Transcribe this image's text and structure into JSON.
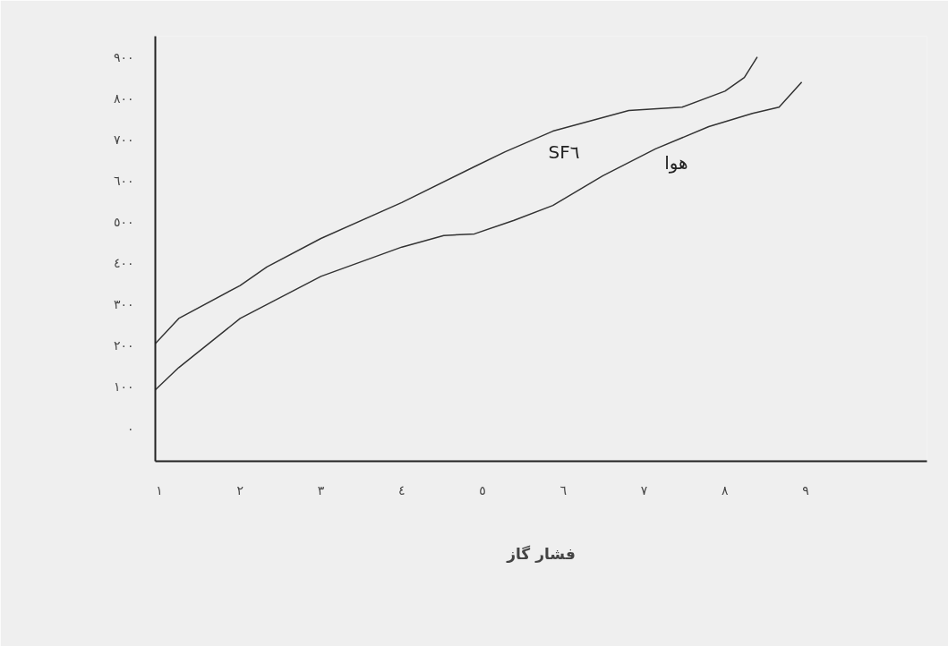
{
  "chart_data": {
    "type": "line",
    "xlabel": "فشار گاز",
    "series": [
      {
        "name": "SF٦",
        "color": "#333333",
        "x": [
          0.95,
          1.24,
          2.0,
          2.33,
          3.0,
          4.0,
          4.9,
          5.28,
          5.87,
          6.81,
          7.47,
          8.0,
          8.24,
          8.4
        ],
        "values": [
          205,
          266,
          346,
          391,
          460,
          547,
          634,
          670,
          720,
          770,
          778,
          817,
          850,
          900
        ]
      },
      {
        "name": "هوا",
        "color": "#333333",
        "x": [
          0.95,
          1.24,
          2.0,
          3.0,
          4.0,
          4.52,
          4.9,
          5.39,
          5.87,
          6.49,
          7.14,
          7.8,
          8.34,
          8.67,
          8.95
        ],
        "values": [
          93,
          147,
          266,
          368,
          439,
          467,
          471,
          504,
          540,
          612,
          677,
          731,
          763,
          778,
          839
        ]
      }
    ],
    "xlim": [
      0.95,
      10.5
    ],
    "ylim": [
      -80,
      950
    ],
    "xticks": [
      {
        "value": 1,
        "label": "١"
      },
      {
        "value": 2,
        "label": "٢"
      },
      {
        "value": 3,
        "label": "٣"
      },
      {
        "value": 4,
        "label": "٤"
      },
      {
        "value": 5,
        "label": "٥"
      },
      {
        "value": 6,
        "label": "٦"
      },
      {
        "value": 7,
        "label": "٧"
      },
      {
        "value": 8,
        "label": "٨"
      },
      {
        "value": 9,
        "label": "٩"
      }
    ],
    "yticks": [
      {
        "value": 0,
        "label": "٠"
      },
      {
        "value": 100,
        "label": "١٠٠"
      },
      {
        "value": 200,
        "label": "٢٠٠"
      },
      {
        "value": 300,
        "label": "٣٠٠"
      },
      {
        "value": 400,
        "label": "٤٠٠"
      },
      {
        "value": 500,
        "label": "٥٠٠"
      },
      {
        "value": 600,
        "label": "٦٠٠"
      },
      {
        "value": 700,
        "label": "٧٠٠"
      },
      {
        "value": 800,
        "label": "٨٠٠"
      },
      {
        "value": 900,
        "label": "٩٠٠"
      }
    ],
    "grid": false,
    "marker": "none",
    "line_style": "solid"
  }
}
